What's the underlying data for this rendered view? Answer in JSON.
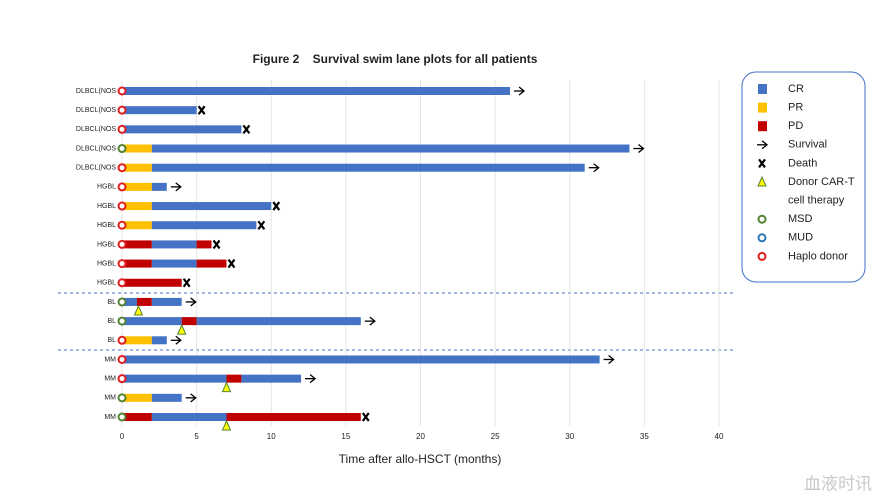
{
  "chart_data": {
    "type": "swimmer",
    "title": "Figure 2    Survival swim lane plots for all patients",
    "x_label": "Time after allo-HSCT  (months)",
    "xlim": [
      0,
      40
    ],
    "xticks": [
      0,
      5,
      10,
      15,
      20,
      25,
      30,
      35,
      40
    ],
    "grid": true,
    "legend_position": "right",
    "legend": [
      {
        "key": "CR",
        "label": "CR",
        "shape": "square",
        "color": "#4472c4"
      },
      {
        "key": "PR",
        "label": "PR",
        "shape": "square",
        "color": "#ffc000"
      },
      {
        "key": "PD",
        "label": "PD",
        "shape": "square",
        "color": "#c00000"
      },
      {
        "key": "Survival",
        "label": "Survival",
        "shape": "arrow",
        "color": "#000000"
      },
      {
        "key": "Death",
        "label": "Death",
        "shape": "cross",
        "color": "#000000"
      },
      {
        "key": "CAR-T",
        "label": "Donor CAR-T",
        "label2": "cell therapy",
        "shape": "triangle",
        "color": "#ffff00"
      },
      {
        "key": "MSD",
        "label": "MSD",
        "shape": "circle",
        "color": "#548235"
      },
      {
        "key": "MUD",
        "label": "MUD",
        "shape": "circle",
        "color": "#2e75b6"
      },
      {
        "key": "Haplo",
        "label": "Haplo donor",
        "shape": "circle",
        "color": "#e02020"
      }
    ],
    "patients": [
      {
        "label": "DLBCL(NOS",
        "donor": "Haplo",
        "outcome": "Survival",
        "segments": [
          {
            "status": "CR",
            "start": 0,
            "end": 26
          }
        ]
      },
      {
        "label": "DLBCL(NOS",
        "donor": "Haplo",
        "outcome": "Death",
        "segments": [
          {
            "status": "CR",
            "start": 0,
            "end": 5
          }
        ]
      },
      {
        "label": "DLBCL(NOS",
        "donor": "Haplo",
        "outcome": "Death",
        "segments": [
          {
            "status": "CR",
            "start": 0,
            "end": 8
          }
        ]
      },
      {
        "label": "DLBCL(NOS",
        "donor": "MSD",
        "outcome": "Survival",
        "segments": [
          {
            "status": "PR",
            "start": 0,
            "end": 2
          },
          {
            "status": "CR",
            "start": 2,
            "end": 34
          }
        ]
      },
      {
        "label": "DLBCL(NOS",
        "donor": "Haplo",
        "outcome": "Survival",
        "segments": [
          {
            "status": "PR",
            "start": 0,
            "end": 2
          },
          {
            "status": "CR",
            "start": 2,
            "end": 31
          }
        ]
      },
      {
        "label": "HGBL",
        "donor": "Haplo",
        "outcome": "Survival",
        "segments": [
          {
            "status": "PR",
            "start": 0,
            "end": 2
          },
          {
            "status": "CR",
            "start": 2,
            "end": 3
          }
        ]
      },
      {
        "label": "HGBL",
        "donor": "Haplo",
        "outcome": "Death",
        "segments": [
          {
            "status": "PR",
            "start": 0,
            "end": 2
          },
          {
            "status": "CR",
            "start": 2,
            "end": 10
          }
        ]
      },
      {
        "label": "HGBL",
        "donor": "Haplo",
        "outcome": "Death",
        "segments": [
          {
            "status": "PR",
            "start": 0,
            "end": 2
          },
          {
            "status": "CR",
            "start": 2,
            "end": 9
          }
        ]
      },
      {
        "label": "HGBL",
        "donor": "Haplo",
        "outcome": "Death",
        "segments": [
          {
            "status": "PD",
            "start": 0,
            "end": 2
          },
          {
            "status": "CR",
            "start": 2,
            "end": 5
          },
          {
            "status": "PD",
            "start": 5,
            "end": 6
          }
        ]
      },
      {
        "label": "HGBL",
        "donor": "Haplo",
        "outcome": "Death",
        "segments": [
          {
            "status": "PD",
            "start": 0,
            "end": 2
          },
          {
            "status": "CR",
            "start": 2,
            "end": 5
          },
          {
            "status": "PD",
            "start": 5,
            "end": 7
          }
        ]
      },
      {
        "label": "HGBL",
        "donor": "Haplo",
        "outcome": "Death",
        "segments": [
          {
            "status": "PD",
            "start": 0,
            "end": 4
          }
        ]
      },
      {
        "label": "BL",
        "donor": "MSD",
        "outcome": "Survival",
        "cart": 1.1,
        "segments": [
          {
            "status": "CR",
            "start": 0,
            "end": 1
          },
          {
            "status": "PD",
            "start": 1,
            "end": 2
          },
          {
            "status": "CR",
            "start": 2,
            "end": 4
          }
        ]
      },
      {
        "label": "BL",
        "donor": "MSD",
        "outcome": "Survival",
        "cart": 4,
        "segments": [
          {
            "status": "CR",
            "start": 0,
            "end": 4
          },
          {
            "status": "PD",
            "start": 4,
            "end": 5
          },
          {
            "status": "CR",
            "start": 5,
            "end": 16
          }
        ]
      },
      {
        "label": "BL",
        "donor": "Haplo",
        "outcome": "Survival",
        "segments": [
          {
            "status": "PR",
            "start": 0,
            "end": 2
          },
          {
            "status": "CR",
            "start": 2,
            "end": 3
          }
        ]
      },
      {
        "label": "MM",
        "donor": "Haplo",
        "outcome": "Survival",
        "segments": [
          {
            "status": "CR",
            "start": 0,
            "end": 32
          }
        ]
      },
      {
        "label": "MM",
        "donor": "Haplo",
        "outcome": "Survival",
        "cart": 7,
        "segments": [
          {
            "status": "CR",
            "start": 0,
            "end": 7
          },
          {
            "status": "PD",
            "start": 7,
            "end": 8
          },
          {
            "status": "CR",
            "start": 8,
            "end": 12
          }
        ]
      },
      {
        "label": "MM",
        "donor": "MSD",
        "outcome": "Survival",
        "segments": [
          {
            "status": "PR",
            "start": 0,
            "end": 2
          },
          {
            "status": "CR",
            "start": 2,
            "end": 4
          }
        ]
      },
      {
        "label": "MM",
        "donor": "MSD",
        "outcome": "Death",
        "cart": 7,
        "segments": [
          {
            "status": "PD",
            "start": 0,
            "end": 2
          },
          {
            "status": "CR",
            "start": 2,
            "end": 7
          },
          {
            "status": "PD",
            "start": 7,
            "end": 16
          }
        ]
      }
    ],
    "watermark": "血液时讯"
  }
}
